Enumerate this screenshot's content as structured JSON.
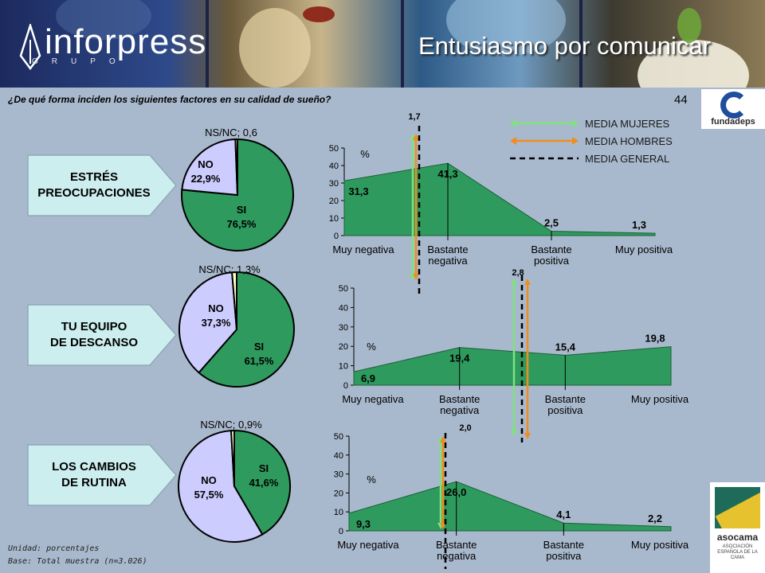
{
  "header": {
    "logo": "inforpress",
    "logo_sub": "GRUPO",
    "title": "Entusiasmo por comunicar"
  },
  "question": "¿De qué forma inciden los siguientes factores en su calidad de sueño?",
  "page_number": "44",
  "logos": {
    "fundadeps": "fundadeps",
    "asocama": "asocama",
    "asocama_sub": "ASOCIACIÓN ESPAÑOLA DE LA CAMA"
  },
  "legend": {
    "items": [
      {
        "label": "MEDIA MUJERES",
        "color": "#7ee27e",
        "style": "double-arrow"
      },
      {
        "label": "MEDIA HOMBRES",
        "color": "#f28c1e",
        "style": "double-arrow"
      },
      {
        "label": "MEDIA GENERAL",
        "color": "#000000",
        "style": "dashed"
      }
    ]
  },
  "rows": [
    {
      "tag": "ESTRÉS\nPREOCUPACIONES"
    },
    {
      "tag": "TU EQUIPO\nDE DESCANSO"
    },
    {
      "tag": "LOS CAMBIOS\nDE RUTINA"
    }
  ],
  "chart_data": [
    {
      "type": "pie",
      "name": "ESTRÉS PREOCUPACIONES",
      "slices": [
        {
          "label": "SI",
          "value": 76.5,
          "text": "76,5%",
          "color": "#2f9a5e"
        },
        {
          "label": "NO",
          "value": 22.9,
          "text": "22,9%",
          "color": "#ccccff"
        },
        {
          "label": "NS/NC",
          "value": 0.6,
          "text": "NS/NC; 0,6",
          "color": "#ffffcc"
        }
      ]
    },
    {
      "type": "area",
      "name": "ESTRÉS PREOCUPACIONES",
      "categories": [
        "Muy negativa",
        "Bastante negativa",
        "Bastante positiva",
        "Muy positiva"
      ],
      "values": [
        31.3,
        41.3,
        2.5,
        1.3
      ],
      "value_labels": [
        "31,3",
        "41,3",
        "2,5",
        "1,3"
      ],
      "ylim": [
        0,
        50
      ],
      "yticks": [
        0,
        10,
        20,
        30,
        40,
        50
      ],
      "unit": "%",
      "mean_label": "1,7",
      "color": "#2f9a5e"
    },
    {
      "type": "pie",
      "name": "TU EQUIPO DE DESCANSO",
      "slices": [
        {
          "label": "SI",
          "value": 61.5,
          "text": "61,5%",
          "color": "#2f9a5e"
        },
        {
          "label": "NO",
          "value": 37.3,
          "text": "37,3%",
          "color": "#ccccff"
        },
        {
          "label": "NS/NC",
          "value": 1.3,
          "text": "NS/NC; 1,3%",
          "color": "#ffffcc"
        }
      ]
    },
    {
      "type": "area",
      "name": "TU EQUIPO DE DESCANSO",
      "categories": [
        "Muy negativa",
        "Bastante negativa",
        "Bastante positiva",
        "Muy positiva"
      ],
      "values": [
        6.9,
        19.4,
        15.4,
        19.8
      ],
      "value_labels": [
        "6,9",
        "19,4",
        "15,4",
        "19,8"
      ],
      "ylim": [
        0,
        50
      ],
      "yticks": [
        0,
        10,
        20,
        30,
        40,
        50
      ],
      "unit": "%",
      "mean_label": "2,8",
      "color": "#2f9a5e"
    },
    {
      "type": "pie",
      "name": "LOS CAMBIOS DE RUTINA",
      "slices": [
        {
          "label": "SI",
          "value": 41.6,
          "text": "41,6%",
          "color": "#2f9a5e"
        },
        {
          "label": "NO",
          "value": 57.5,
          "text": "57,5%",
          "color": "#ccccff"
        },
        {
          "label": "NS/NC",
          "value": 0.9,
          "text": "NS/NC; 0,9%",
          "color": "#ffffcc"
        }
      ]
    },
    {
      "type": "area",
      "name": "LOS CAMBIOS DE RUTINA",
      "categories": [
        "Muy negativa",
        "Bastante negativa",
        "Bastante positiva",
        "Muy positiva"
      ],
      "values": [
        9.3,
        26.0,
        4.1,
        2.2
      ],
      "value_labels": [
        "9,3",
        "26,0",
        "4,1",
        "2,2"
      ],
      "ylim": [
        0,
        50
      ],
      "yticks": [
        0,
        10,
        20,
        30,
        40,
        50
      ],
      "unit": "%",
      "mean_label": "2,0",
      "color": "#2f9a5e"
    }
  ],
  "footer": {
    "unit": "Unidad: porcentajes",
    "base": "Base: Total muestra (n=3.026)"
  }
}
